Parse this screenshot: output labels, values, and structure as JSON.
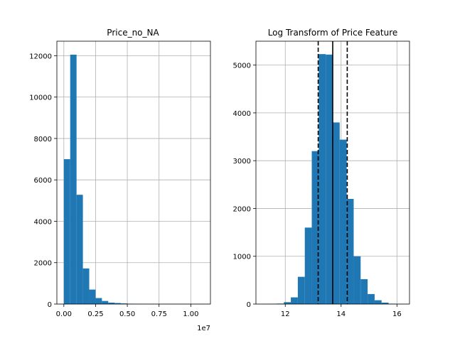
{
  "chart_data": [
    {
      "type": "bar",
      "title": "Price_no_NA",
      "xlabel": "",
      "ylabel": "",
      "x_scale_label": "1e7",
      "bin_edges": [
        0.0,
        0.05,
        0.1,
        0.15,
        0.2,
        0.25,
        0.3,
        0.35,
        0.4,
        0.45,
        0.5,
        0.55,
        0.6,
        0.65,
        0.7,
        0.75,
        0.8,
        0.85,
        0.9,
        0.95,
        1.0,
        1.05,
        1.1
      ],
      "values": [
        7000,
        12050,
        5280,
        1720,
        700,
        290,
        150,
        70,
        50,
        30,
        18,
        12,
        8,
        5,
        4,
        3,
        2,
        2,
        1,
        1,
        1,
        1
      ],
      "xlim": [
        -0.055,
        1.155
      ],
      "ylim": [
        0,
        12700
      ],
      "xticks": [
        0.0,
        0.25,
        0.5,
        0.75,
        1.0
      ],
      "xtick_labels": [
        "0.00",
        "0.25",
        "0.50",
        "0.75",
        "1.00"
      ],
      "yticks": [
        0,
        2000,
        4000,
        6000,
        8000,
        10000,
        12000
      ],
      "ytick_labels": [
        "0",
        "2000",
        "4000",
        "6000",
        "8000",
        "10000",
        "12000"
      ],
      "grid": true,
      "bar_color": "#1f77b4"
    },
    {
      "type": "bar",
      "title": "Log Transform of Price Feature",
      "xlabel": "",
      "ylabel": "",
      "bin_edges": [
        11.2,
        11.45,
        11.7,
        11.95,
        12.2,
        12.45,
        12.7,
        12.95,
        13.2,
        13.45,
        13.7,
        13.95,
        14.2,
        14.45,
        14.7,
        14.95,
        15.2,
        15.45,
        15.7,
        15.95,
        16.2
      ],
      "values": [
        2,
        4,
        10,
        40,
        140,
        570,
        1600,
        3200,
        5230,
        5220,
        3800,
        3440,
        2200,
        1000,
        520,
        210,
        80,
        30,
        8,
        2
      ],
      "xlim": [
        10.95,
        16.45
      ],
      "ylim": [
        0,
        5500
      ],
      "xticks": [
        12,
        14,
        16
      ],
      "xtick_labels": [
        "12",
        "14",
        "16"
      ],
      "yticks": [
        0,
        1000,
        2000,
        3000,
        4000,
        5000
      ],
      "ytick_labels": [
        "0",
        "1000",
        "2000",
        "3000",
        "4000",
        "5000"
      ],
      "grid": true,
      "bar_color": "#1f77b4",
      "vlines": [
        {
          "x": 13.7,
          "style": "solid"
        },
        {
          "x": 13.18,
          "style": "dashed"
        },
        {
          "x": 14.22,
          "style": "dashed"
        }
      ]
    }
  ]
}
